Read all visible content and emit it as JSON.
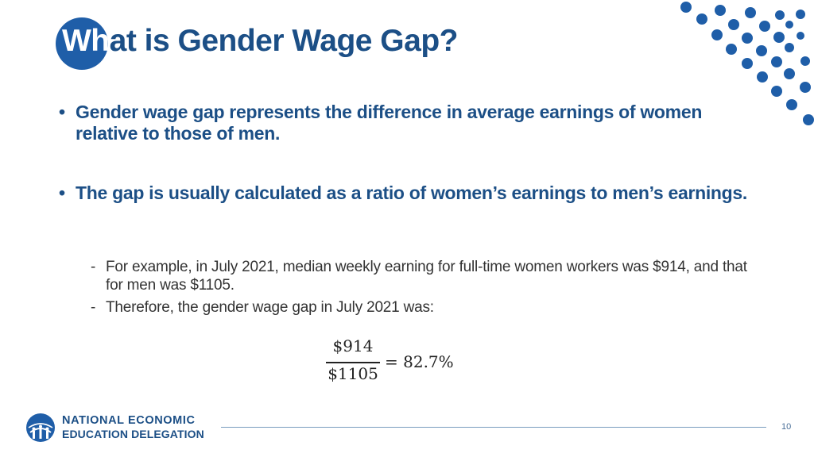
{
  "slide": {
    "title_lead": "Wh",
    "title_rest": "at is Gender Wage Gap?",
    "bullets": [
      {
        "mark": "•",
        "text": "Gender wage gap represents the difference in average earnings of women relative to those of men."
      },
      {
        "mark": "•",
        "text": "The gap is usually calculated as a ratio of women’s earnings to men’s earnings."
      }
    ],
    "sub_bullets": [
      {
        "mark": "-",
        "text": "For example, in July 2021, median weekly earning for full-time women workers was $914, and that for men was $1105."
      },
      {
        "mark": "-",
        "text": "Therefore, the gender wage gap in July 2021 was:"
      }
    ],
    "formula": {
      "numerator": "$914",
      "denominator": "$1105",
      "result": "= 82.7%"
    },
    "footer": {
      "org_line1": "NATIONAL ECONOMIC",
      "org_line2": "EDUCATION DELEGATION",
      "page_number": "10"
    }
  },
  "colors": {
    "title": "#1c4f86",
    "accent_blue": "#1f5ea8",
    "dot_blue": "#1f5ea8",
    "body_text": "#333333"
  },
  "icons": {
    "logo": "globe-with-figures-logo",
    "decoration": "dot-pattern-decoration"
  }
}
